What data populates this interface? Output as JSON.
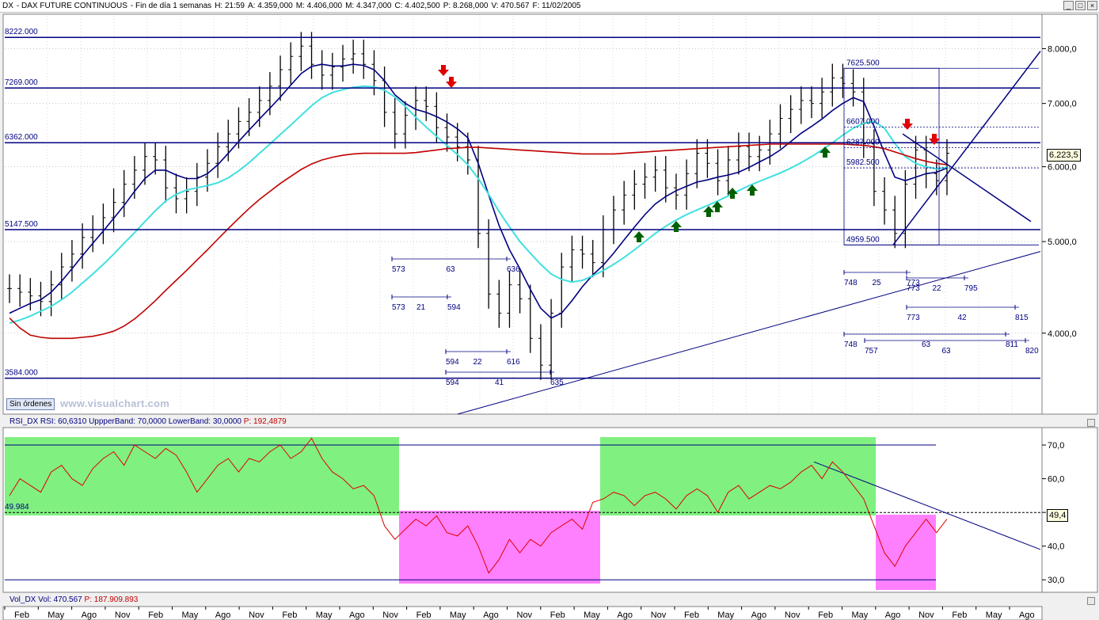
{
  "header": {
    "symbol": "DX",
    "name": "- DAX FUTURE CONTINUOUS",
    "timeframe": "- Fin de día 1 semanas",
    "h": "H: 21:59",
    "a": "A: 4.359,000",
    "m": "M: 4.406,000",
    "mn": "M: 4.347,000",
    "c": "C: 4.402,500",
    "p": "P: 8.268,000",
    "v": "V: 470.567",
    "f": "F: 11/02/2005"
  },
  "window_buttons": [
    "_",
    "□",
    "×"
  ],
  "toolbar": {
    "orders_label": "Sin órdenes",
    "watermark": "www.visualchart.com"
  },
  "price_axis": {
    "ticks": [
      "8.000,0",
      "7.000,0",
      "6.000,0",
      "5.000,0",
      "4.000,0"
    ],
    "current": "6.223,5"
  },
  "rsi_axis": {
    "ticks": [
      "70,0",
      "60,0",
      "50,0",
      "40,0",
      "30,0"
    ],
    "current": "49,4"
  },
  "rsi_legend": {
    "name": "RSI_DX",
    "rsi": "RSI: 60,6310",
    "upper": "UppperBand: 70,0000",
    "lower": "LowerBand: 30,0000",
    "p": "P: 192,4879"
  },
  "vol_legend": {
    "name": "Vol_DX",
    "vol": "Vol: 470.567",
    "p": "P: 187.909.893"
  },
  "time_axis": [
    "Feb",
    "May",
    "Ago",
    "Nov",
    "Feb",
    "May",
    "Ago",
    "Nov",
    "Feb",
    "May",
    "Ago",
    "Nov",
    "Feb",
    "May",
    "Ago",
    "Nov",
    "Feb",
    "May",
    "Ago",
    "Nov",
    "Feb",
    "May",
    "Ago",
    "Nov",
    "Feb",
    "May",
    "Ago",
    "Nov",
    "Feb",
    "May",
    "Ago"
  ],
  "colors": {
    "price": "#000000",
    "ma_fast": "#000080",
    "ma_mid": "#40e0e0",
    "ma_slow": "#c00000",
    "level": "#000080",
    "rsi": "#e00000",
    "green_zone": "#80f080",
    "pink_zone": "#ff80ff",
    "arrow_down": "#e00000",
    "arrow_up": "#006000"
  },
  "chart_data": [
    {
      "type": "line",
      "title": "DX - DAX FUTURE CONTINUOUS",
      "yscale": "log",
      "ylim": [
        3400,
        8500
      ],
      "ytick_labels": [
        "8.000,0",
        "7.000,0",
        "6.000,0",
        "5.000,0",
        "4.000,0"
      ],
      "horizontal_levels": [
        {
          "label": "8222.000",
          "value": 8222
        },
        {
          "label": "7269.000",
          "value": 7269
        },
        {
          "label": "6362.000",
          "value": 6362
        },
        {
          "label": "5147.500",
          "value": 5147.5
        },
        {
          "label": "3584.000",
          "value": 3584
        }
      ],
      "box_levels": [
        {
          "label": "7625.500",
          "value": 7625.5
        },
        {
          "label": "6607.000",
          "value": 6607
        },
        {
          "label": "6287.000",
          "value": 6287
        },
        {
          "label": "5982.500",
          "value": 5982.5
        },
        {
          "label": "4959.500",
          "value": 4959.5
        }
      ],
      "bar_count_annotations": [
        {
          "start": "573",
          "count": "63",
          "end": "636"
        },
        {
          "start": "573",
          "count": "21",
          "end": "594"
        },
        {
          "start": "594",
          "count": "22",
          "end": "616"
        },
        {
          "start": "594",
          "count": "41",
          "end": "635"
        },
        {
          "start": "748",
          "count": "25",
          "end": "773"
        },
        {
          "start": "773",
          "count": "22",
          "end": "795"
        },
        {
          "start": "773",
          "count": "42",
          "end": "815"
        },
        {
          "start": "748",
          "count": "63",
          "end": "811"
        },
        {
          "start": "757",
          "count": "63",
          "end": "820"
        }
      ],
      "series": [
        {
          "values": [
            4460,
            4420,
            4380,
            4320,
            4500,
            4700,
            4850,
            5050,
            5150,
            5300,
            5500,
            5750,
            5950,
            6150,
            6100,
            5700,
            5550,
            5650,
            5850,
            6050,
            6300,
            6500,
            6700,
            6850,
            7050,
            7300,
            7600,
            7850,
            8050,
            7700,
            7500,
            7650,
            7800,
            7900,
            7700,
            7400,
            6850,
            6500,
            6800,
            7050,
            6950,
            6600,
            6450,
            6300,
            6100,
            5100,
            4400,
            4200,
            4500,
            4350,
            3950,
            3700,
            4200,
            4700,
            4900,
            4850,
            4750,
            5150,
            5400,
            5600,
            5750,
            5850,
            5950,
            5700,
            5600,
            5900,
            6200,
            6050,
            5800,
            6100,
            6300,
            6150,
            6250,
            6500,
            6750,
            6900,
            7050,
            7000,
            7200,
            7450,
            7350,
            7200,
            6350,
            5650,
            5400,
            5100,
            5750,
            6250,
            5900,
            5800,
            6200
          ]
        },
        {
          "values": [
            4200,
            4250,
            4300,
            4340,
            4420,
            4540,
            4680,
            4830,
            4980,
            5130,
            5290,
            5460,
            5650,
            5830,
            5950,
            5950,
            5880,
            5830,
            5830,
            5900,
            6030,
            6200,
            6380,
            6560,
            6740,
            6920,
            7110,
            7320,
            7530,
            7660,
            7700,
            7670,
            7670,
            7700,
            7680,
            7600,
            7400,
            7150,
            7000,
            6900,
            6850,
            6780,
            6690,
            6580,
            6440,
            6050,
            5600,
            5200,
            4900,
            4680,
            4450,
            4250,
            4150,
            4200,
            4330,
            4480,
            4610,
            4720,
            4860,
            5020,
            5180,
            5340,
            5480,
            5580,
            5660,
            5720,
            5780,
            5810,
            5850,
            5880,
            5920,
            5990,
            6070,
            6150,
            6250,
            6380,
            6510,
            6620,
            6740,
            6880,
            7000,
            7100,
            7030,
            6620,
            6200,
            5850,
            5800,
            5850,
            5900,
            5920,
            5980
          ]
        },
        {
          "values": [
            4100,
            4130,
            4170,
            4220,
            4270,
            4340,
            4420,
            4520,
            4620,
            4730,
            4850,
            4980,
            5110,
            5250,
            5390,
            5520,
            5610,
            5670,
            5700,
            5730,
            5770,
            5840,
            5940,
            6060,
            6200,
            6340,
            6490,
            6640,
            6800,
            6960,
            7100,
            7190,
            7240,
            7280,
            7300,
            7290,
            7230,
            7110,
            6950,
            6770,
            6610,
            6460,
            6320,
            6180,
            6030,
            5830,
            5610,
            5380,
            5180,
            5000,
            4860,
            4730,
            4620,
            4560,
            4530,
            4550,
            4600,
            4660,
            4730,
            4810,
            4900,
            5000,
            5100,
            5190,
            5270,
            5340,
            5400,
            5460,
            5520,
            5590,
            5660,
            5730,
            5790,
            5850,
            5910,
            5980,
            6060,
            6150,
            6250,
            6360,
            6480,
            6590,
            6670,
            6700,
            6590,
            6350,
            6150,
            6050,
            6000,
            5970,
            5990
          ]
        },
        {
          "values": [
            4150,
            4050,
            3980,
            3960,
            3950,
            3950,
            3950,
            3960,
            3970,
            3990,
            4020,
            4070,
            4140,
            4230,
            4330,
            4440,
            4550,
            4660,
            4780,
            4900,
            5030,
            5160,
            5290,
            5420,
            5540,
            5650,
            5760,
            5860,
            5960,
            6040,
            6100,
            6140,
            6170,
            6190,
            6200,
            6200,
            6200,
            6200,
            6200,
            6210,
            6230,
            6250,
            6270,
            6280,
            6290,
            6290,
            6280,
            6270,
            6260,
            6250,
            6240,
            6230,
            6220,
            6210,
            6200,
            6190,
            6190,
            6190,
            6190,
            6200,
            6210,
            6220,
            6230,
            6240,
            6250,
            6260,
            6270,
            6280,
            6290,
            6300,
            6310,
            6320,
            6330,
            6340,
            6340,
            6340,
            6340,
            6340,
            6340,
            6340,
            6340,
            6330,
            6320,
            6300,
            6270,
            6220,
            6170,
            6120,
            6080,
            6050,
            6030
          ]
        }
      ]
    },
    {
      "type": "line",
      "title": "RSI_DX",
      "ylim": [
        27,
        74
      ],
      "ytick_labels": [
        "70,0",
        "60,0",
        "50,0",
        "40,0",
        "30,0"
      ],
      "reference_label": "49.984",
      "series": [
        {
          "values": [
            55,
            60,
            58,
            56,
            62,
            64,
            60,
            58,
            63,
            66,
            68,
            64,
            70,
            68,
            66,
            69,
            67,
            62,
            56,
            60,
            64,
            66,
            62,
            66,
            65,
            68,
            70,
            66,
            68,
            72,
            66,
            62,
            60,
            57,
            58,
            55,
            46,
            42,
            45,
            48,
            46,
            49,
            44,
            43,
            46,
            40,
            32,
            36,
            42,
            38,
            42,
            40,
            44,
            46,
            48,
            45,
            53,
            54,
            56,
            55,
            52,
            55,
            56,
            54,
            51,
            55,
            57,
            55,
            50,
            56,
            58,
            54,
            56,
            58,
            57,
            59,
            62,
            64,
            60,
            65,
            62,
            58,
            54,
            46,
            38,
            34,
            40,
            44,
            48,
            44,
            48
          ]
        }
      ]
    }
  ]
}
